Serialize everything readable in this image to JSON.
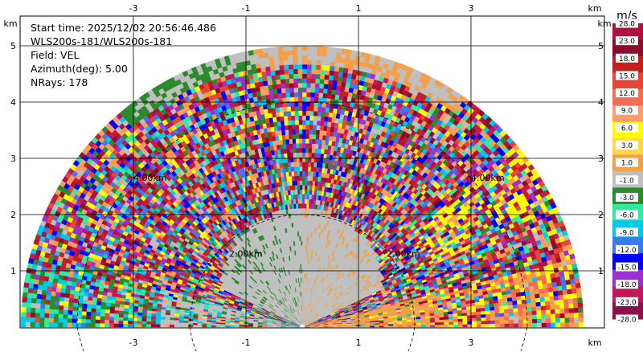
{
  "info": {
    "start_time": "Start time: 2025/12/02 20:56:46.486",
    "site": "WLS200s-181/WLS200s-181",
    "field": "Field: VEL",
    "azimuth": "Azimuth(deg): 5.00",
    "nrays": "NRays: 178"
  },
  "axes": {
    "unit": "km",
    "x_ticks": [
      "-3",
      "-1",
      "1",
      "3"
    ],
    "y_ticks": [
      "1",
      "2",
      "3",
      "4",
      "5"
    ]
  },
  "range_ring_labels": [
    "2.00km",
    "2.00km",
    "4.00km",
    "4.00km"
  ],
  "colorbar": {
    "unit": "m/s",
    "labels": [
      "28.0",
      "23.0",
      "18.0",
      "15.0",
      "12.0",
      "9.0",
      "6.0",
      "3.0",
      "1.0",
      "-1.0",
      "-3.0",
      "-6.0",
      "-9.0",
      "-12.0",
      "-15.0",
      "-18.0",
      "-23.0",
      "-28.0"
    ],
    "colors": [
      "#b0123c",
      "#8c0d2a",
      "#c41f1f",
      "#e8453a",
      "#f66c55",
      "#ff9c6e",
      "#ffff00",
      "#ffd54d",
      "#f4a04a",
      "#bfbfbf",
      "#2b8a2b",
      "#35e8a0",
      "#00c8e8",
      "#3c78f0",
      "#0000ff",
      "#9b30d0",
      "#c2185b",
      "#8b0f4a"
    ]
  },
  "chart_data": {
    "type": "heatmap",
    "field": "VEL",
    "units": "m/s",
    "x_range_km": [
      -4.1,
      4.1
    ],
    "y_range_km": [
      0,
      5.6
    ],
    "max_range_km": 5.0,
    "azimuth_deg": 5.0,
    "nrays": 178
  }
}
